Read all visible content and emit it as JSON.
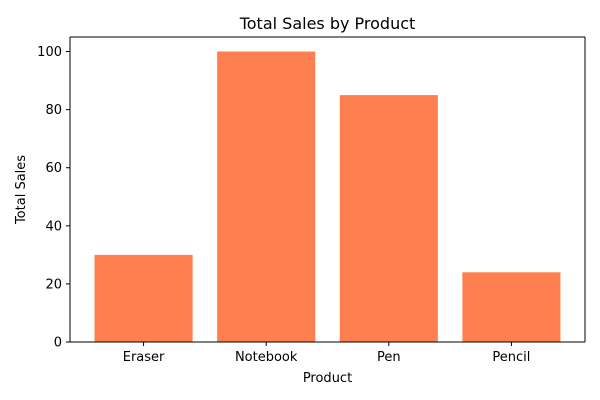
{
  "chart_data": {
    "type": "bar",
    "title": "Total Sales by Product",
    "xlabel": "Product",
    "ylabel": "Total Sales",
    "categories": [
      "Eraser",
      "Notebook",
      "Pen",
      "Pencil"
    ],
    "values": [
      30,
      100,
      85,
      24
    ],
    "ylim": [
      0,
      105
    ],
    "yticks": [
      0,
      20,
      40,
      60,
      80,
      100
    ],
    "bar_color": "#ff7f50",
    "grid": false,
    "legend": "none"
  }
}
